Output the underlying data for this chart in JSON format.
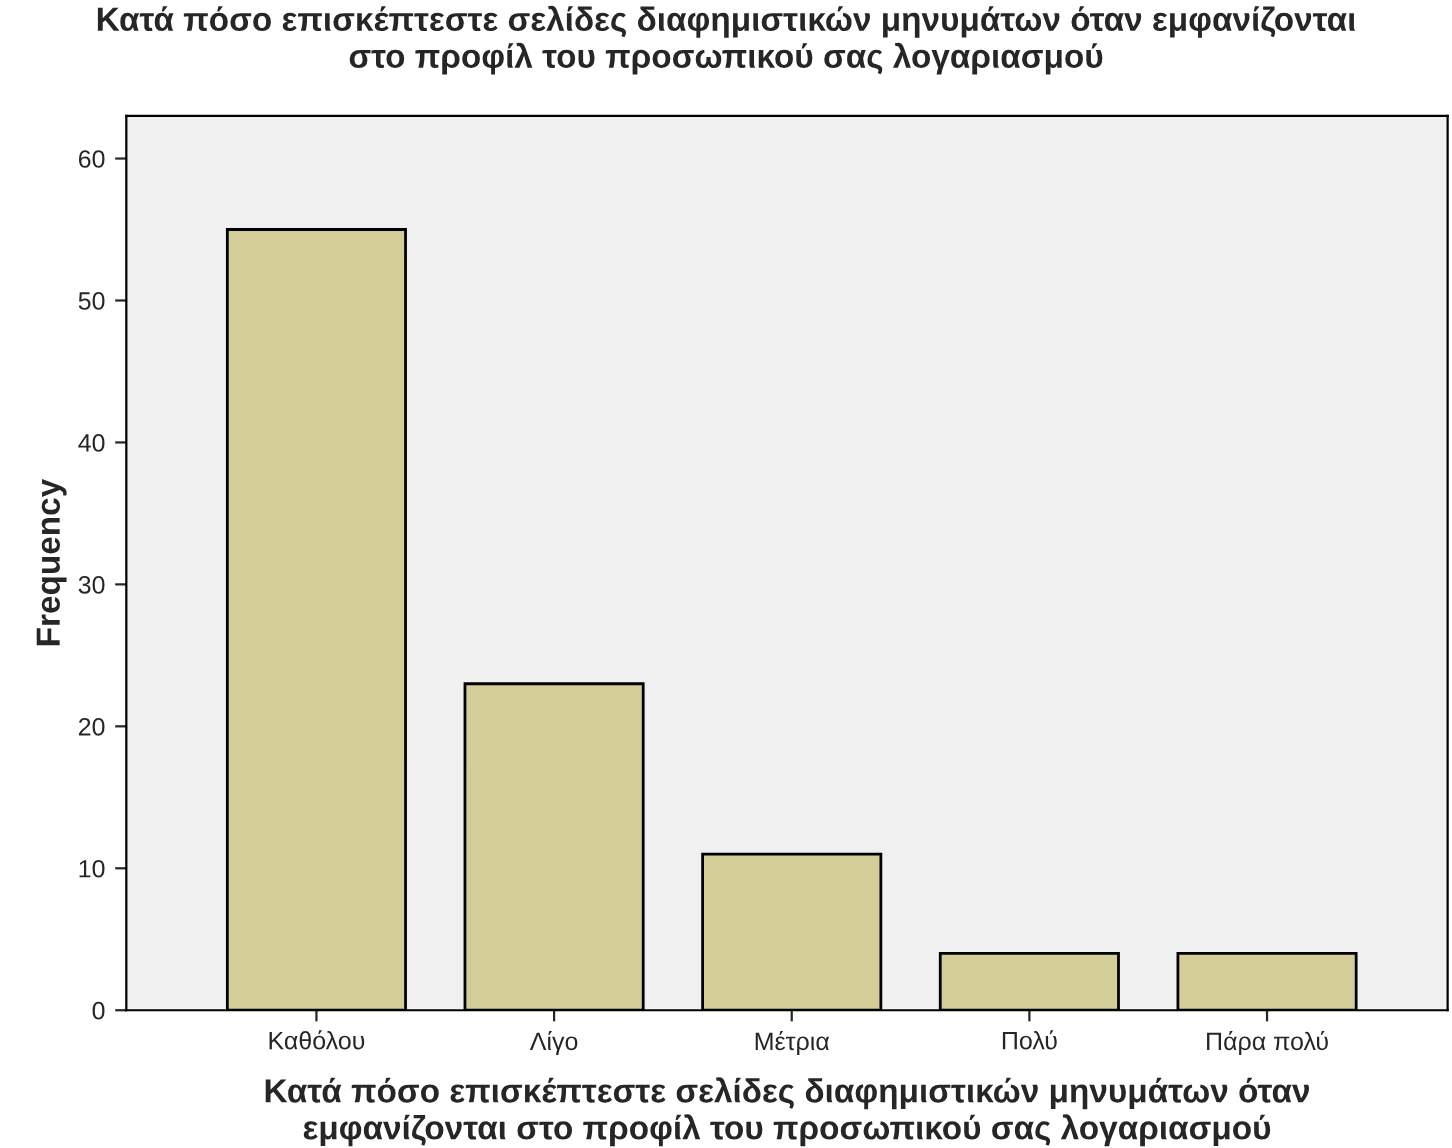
{
  "chart_data": {
    "type": "bar",
    "title": "Κατά πόσο επισκέπτεστε σελίδες διαφημιστικών μηνυμάτων όταν εμφανίζονται\nστο προφίλ του προσωπικού σας λογαριασμού",
    "xlabel": "Κατά πόσο επισκέπτεστε σελίδες διαφημιστικών μηνυμάτων όταν\nεμφανίζονται στο προφίλ του προσωπικού σας λογαριασμού",
    "ylabel": "Frequency",
    "categories": [
      "Καθόλου",
      "Λίγο",
      "Μέτρια",
      "Πολύ",
      "Πάρα πολύ"
    ],
    "values": [
      55,
      23,
      11,
      4,
      4
    ],
    "color": "#d3ce97",
    "ylim": [
      0,
      63
    ],
    "yticks": [
      0,
      10,
      20,
      30,
      40,
      50,
      60
    ],
    "grid": false,
    "legend": false
  }
}
